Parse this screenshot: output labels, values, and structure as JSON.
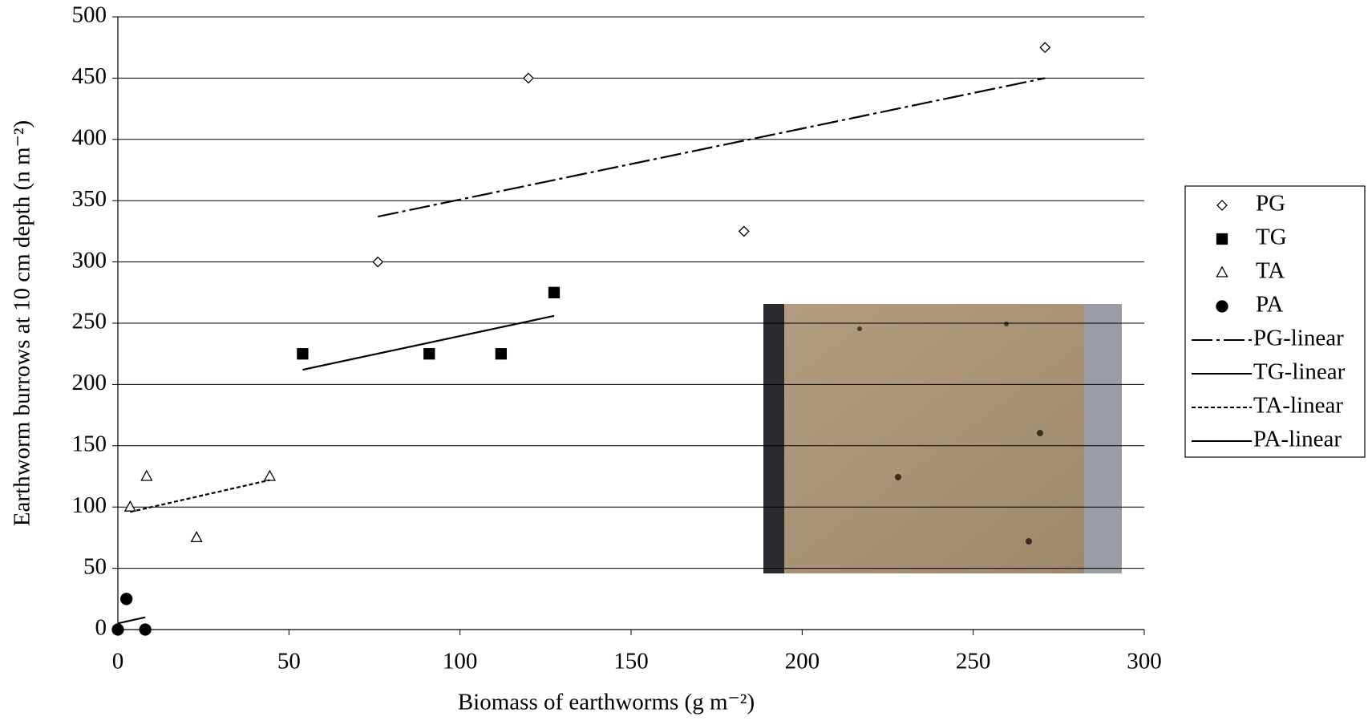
{
  "chart_data": {
    "type": "scatter",
    "x_label": "Biomass of earthworms (g m⁻²)",
    "y_label": "Earthworm burrows at 10 cm depth (n m⁻²)",
    "xlim": [
      0,
      300
    ],
    "xticks": [
      0,
      50,
      100,
      150,
      200,
      250,
      300
    ],
    "ylim": [
      0,
      500
    ],
    "yticks": [
      0,
      50,
      100,
      150,
      200,
      250,
      300,
      350,
      400,
      450,
      500
    ],
    "grid": true,
    "legend": "right",
    "series": [
      {
        "name": "PG",
        "marker": "diamond",
        "color": "#000000",
        "x": [
          76,
          120,
          183,
          271
        ],
        "values": [
          300,
          450,
          325,
          475
        ]
      },
      {
        "name": "TG",
        "marker": "square",
        "color": "#000000",
        "x": [
          54,
          91,
          112,
          127.5
        ],
        "values": [
          225,
          225,
          225,
          275
        ]
      },
      {
        "name": "TA",
        "marker": "triangle",
        "color": "#000000",
        "x": [
          3.6,
          8.4,
          23,
          44.4
        ],
        "values": [
          100,
          125,
          75,
          125
        ]
      },
      {
        "name": "PA",
        "marker": "circle",
        "color": "#000000",
        "x": [
          0,
          2.5,
          8
        ],
        "values": [
          0,
          25,
          0
        ]
      },
      {
        "name": "PG-linear",
        "line": "dashdot",
        "color": "#000000",
        "x": [
          76,
          271
        ],
        "values": [
          337,
          450
        ]
      },
      {
        "name": "TG-linear",
        "line": "solid",
        "color": "#000000",
        "x": [
          54,
          127.5
        ],
        "values": [
          212,
          256
        ]
      },
      {
        "name": "TA-linear",
        "line": "dotted",
        "color": "#000000",
        "x": [
          3.6,
          44.4
        ],
        "values": [
          96,
          122
        ]
      },
      {
        "name": "PA-linear",
        "line": "solid",
        "color": "#000000",
        "x": [
          0,
          8
        ],
        "values": [
          5,
          10
        ]
      }
    ]
  }
}
